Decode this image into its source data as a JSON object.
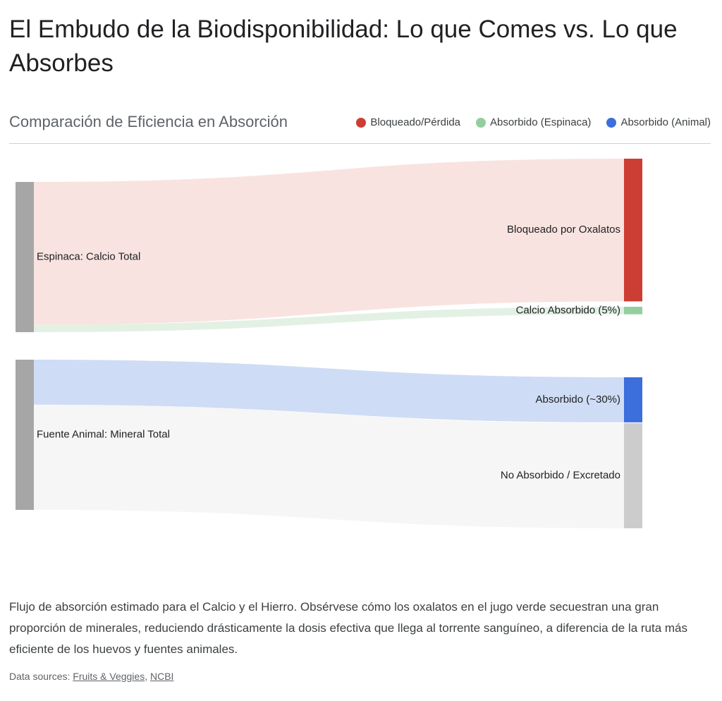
{
  "chart_data": {
    "type": "sankey",
    "title": "El Embudo de la Biodisponibilidad: Lo que Comes vs. Lo que Absorbes",
    "subtitle": "Comparación de Eficiencia en Absorción",
    "legend": [
      {
        "name": "Bloqueado/Pérdida",
        "color": "#cc3e33"
      },
      {
        "name": "Absorbido (Espinaca)",
        "color": "#93cf9e"
      },
      {
        "name": "Absorbido (Animal)",
        "color": "#3c6fdc"
      }
    ],
    "nodes": [
      {
        "name": "Espinaca: Calcio Total",
        "color": "#a6a6a6"
      },
      {
        "name": "Fuente Animal: Mineral Total",
        "color": "#a6a6a6"
      },
      {
        "name": "Bloqueado por Oxalatos",
        "color": "#cc3e33"
      },
      {
        "name": "Calcio Absorbido (5%)",
        "color": "#93cf9e"
      },
      {
        "name": "Absorbido (~30%)",
        "color": "#3c6fdc"
      },
      {
        "name": "No Absorbido / Excretado",
        "color": "#cccccc"
      }
    ],
    "links": [
      {
        "source": 0,
        "target": 2,
        "value": 95,
        "color": "#f8e3e0"
      },
      {
        "source": 0,
        "target": 3,
        "value": 5,
        "color": "#e2f1e4"
      },
      {
        "source": 1,
        "target": 4,
        "value": 30,
        "color": "#cfdcf5"
      },
      {
        "source": 1,
        "target": 5,
        "value": 70,
        "color": "#f6f6f6"
      }
    ],
    "caption": "Flujo de absorción estimado para el Calcio y el Hierro. Obsérvese cómo los oxalatos en el jugo verde secuestran una gran proporción de minerales, reduciendo drásticamente la dosis efectiva que llega al torrente sanguíneo, a diferencia de la ruta más eficiente de los huevos y fuentes animales.",
    "sources": {
      "label": "Data sources:",
      "links": [
        "Fruits & Veggies",
        "NCBI"
      ]
    }
  }
}
